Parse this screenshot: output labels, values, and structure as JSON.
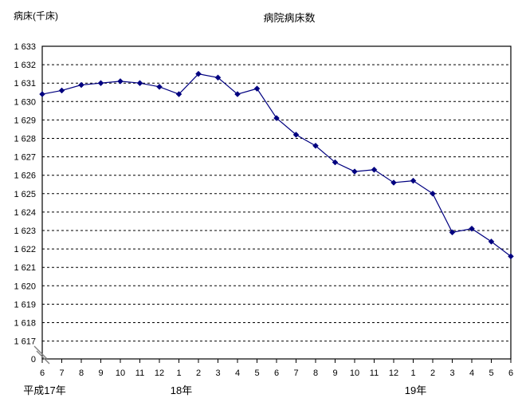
{
  "chart_data": {
    "type": "line",
    "title": "病院病床数",
    "ylabel": "病床(千床)",
    "legend": "none",
    "grid": {
      "horizontal": "dashed",
      "vertical": "none"
    },
    "x_tick_labels": [
      "6",
      "7",
      "8",
      "9",
      "10",
      "11",
      "12",
      "1",
      "2",
      "3",
      "4",
      "5",
      "6",
      "7",
      "8",
      "9",
      "10",
      "11",
      "12",
      "1",
      "2",
      "3",
      "4",
      "5",
      "6"
    ],
    "x_year_labels": [
      {
        "label": "平成17年",
        "index": 0
      },
      {
        "label": "18年",
        "index": 7
      },
      {
        "label": "19年",
        "index": 19
      }
    ],
    "y_axis": {
      "max": 1633,
      "min": 1617,
      "tick_labels": [
        "1 633",
        "1 632",
        "1 631",
        "1 630",
        "1 629",
        "1 628",
        "1 627",
        "1 626",
        "1 625",
        "1 624",
        "1 623",
        "1 622",
        "1 621",
        "1 620",
        "1 619",
        "1 618",
        "1 617"
      ],
      "origin_label": "0",
      "has_axis_break": true
    },
    "series": [
      {
        "name": "病院病床数",
        "color": "#000080",
        "marker": "diamond",
        "values": [
          1630.4,
          1630.6,
          1630.9,
          1631.0,
          1631.1,
          1631.0,
          1630.8,
          1630.4,
          1631.5,
          1631.3,
          1630.4,
          1630.7,
          1629.1,
          1628.2,
          1627.6,
          1626.7,
          1626.2,
          1626.3,
          1625.6,
          1625.7,
          1625.0,
          1622.9,
          1623.1,
          1622.4,
          1621.6
        ]
      }
    ]
  }
}
